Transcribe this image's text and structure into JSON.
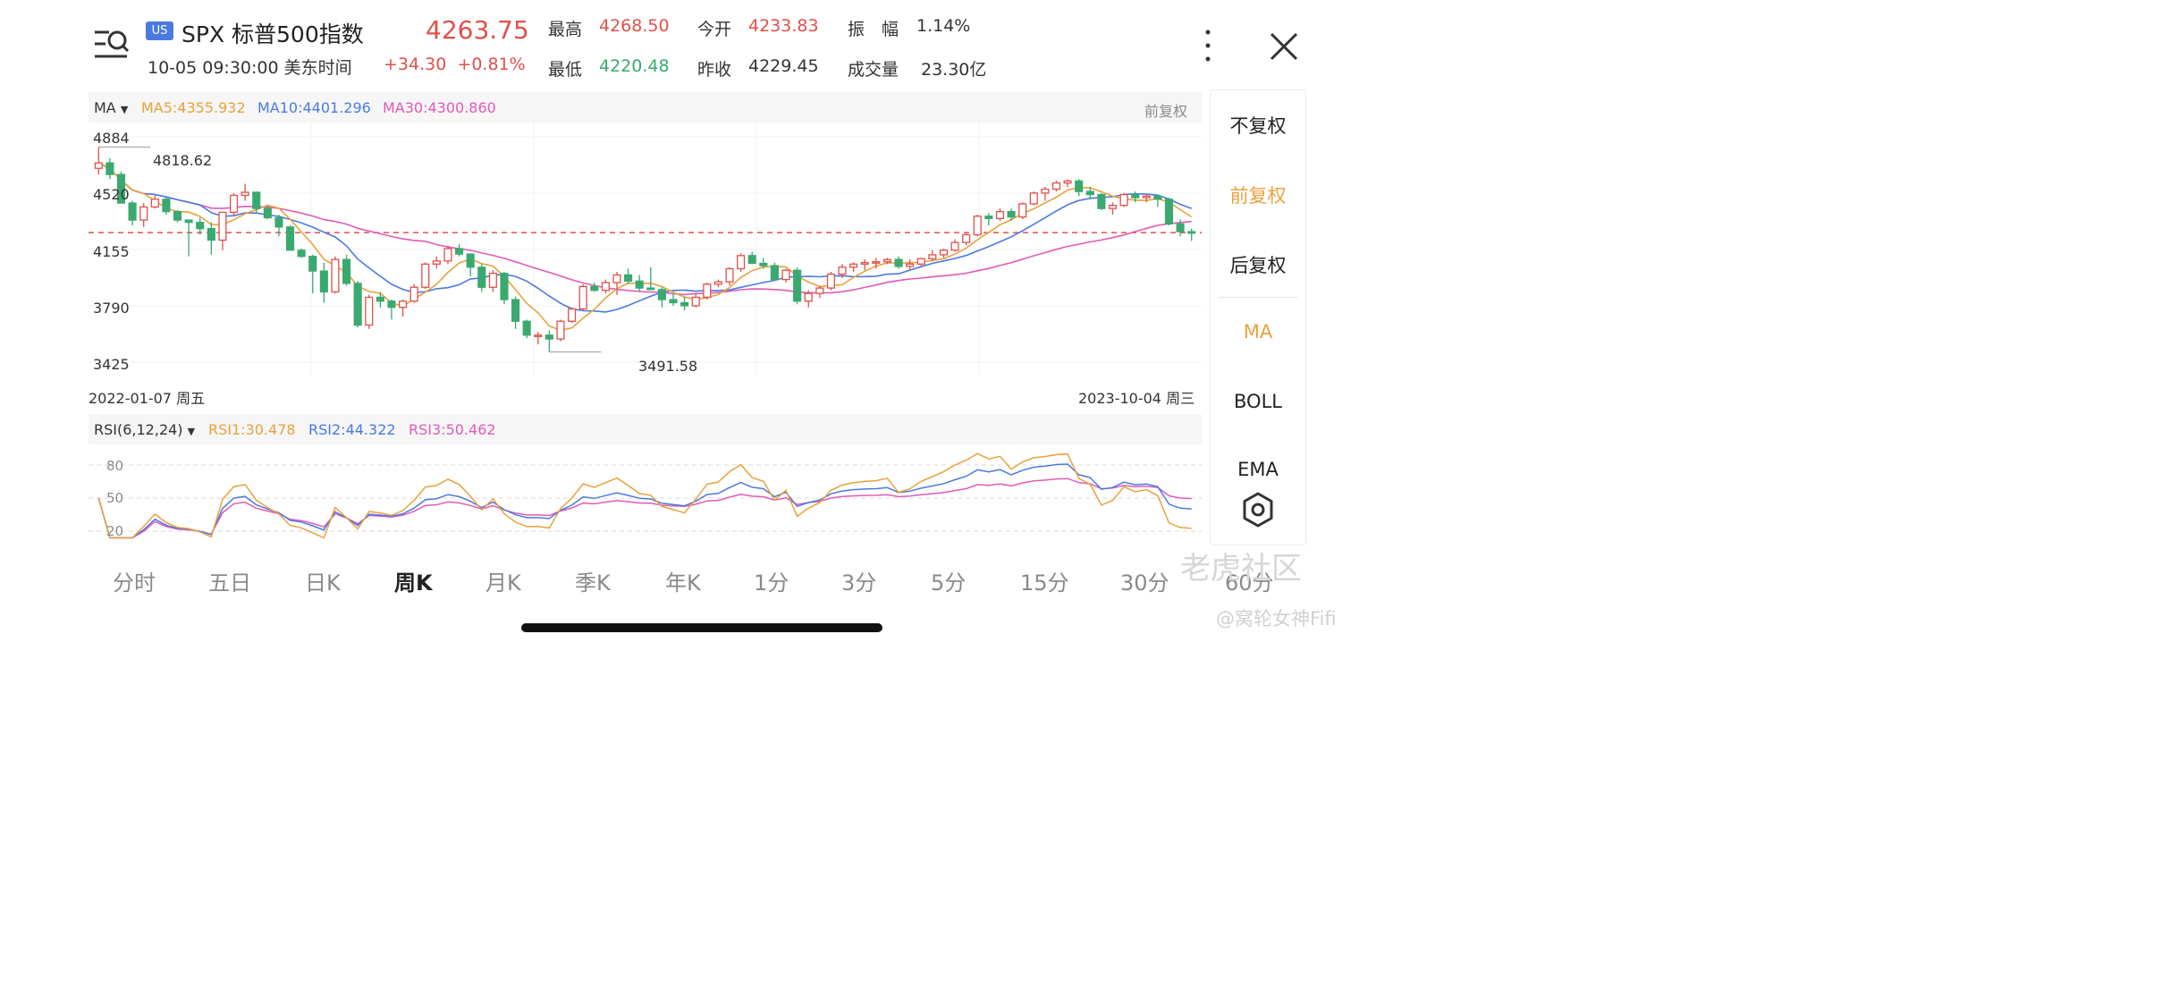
{
  "header": {
    "market_badge": "US",
    "title": "SPX 标普500指数",
    "price": "4263.75",
    "time": "10-05 09:30:00 美东时间",
    "change": "+34.30",
    "change_pct": "+0.81%",
    "stats": [
      {
        "label": "最高",
        "value": "4268.50",
        "color": "red"
      },
      {
        "label": "今开",
        "value": "4233.83",
        "color": "red"
      },
      {
        "label": "振　幅",
        "value": "1.14%",
        "color": "dark"
      },
      {
        "label": "最低",
        "value": "4220.48",
        "color": "green"
      },
      {
        "label": "昨收",
        "value": "4229.45",
        "color": "dark"
      },
      {
        "label": "成交量",
        "value": "23.30亿",
        "color": "dark"
      }
    ]
  },
  "main_chart": {
    "indicator_selector": "MA",
    "ma5": "MA5:4355.932",
    "ma10": "MA10:4401.296",
    "ma30": "MA30:4300.860",
    "adjust_mode": "前复权",
    "y_ticks": [
      "4884",
      "4520",
      "4155",
      "3790",
      "3425"
    ],
    "high_marker": "4818.62",
    "low_marker": "3491.58",
    "start_date": "2022-01-07 周五",
    "end_date": "2023-10-04 周三"
  },
  "rsi_chart": {
    "selector": "RSI(6,12,24)",
    "rsi1": "RSI1:30.478",
    "rsi2": "RSI2:44.322",
    "rsi3": "RSI3:50.462",
    "levels": [
      "80",
      "50",
      "20"
    ]
  },
  "side_panel": {
    "items": [
      "不复权",
      "前复权",
      "后复权",
      "MA",
      "BOLL",
      "EMA"
    ],
    "active_adjust": "前复权",
    "active_indicator": "MA"
  },
  "tabs": [
    "分时",
    "五日",
    "日K",
    "周K",
    "月K",
    "季K",
    "年K",
    "1分",
    "3分",
    "5分",
    "15分",
    "30分",
    "60分"
  ],
  "active_tab": "周K",
  "watermark": "老虎社区",
  "watermark_user": "@窝轮女神Fifi",
  "colors": {
    "up": "#e0504a",
    "down": "#3aa970",
    "ma5": "#e9a23b",
    "ma10": "#4a7ae0",
    "ma30": "#e05ab8"
  },
  "chart_data": {
    "type": "candlestick",
    "ylim": [
      3425,
      4884
    ],
    "current_price_line": 4263.75,
    "candles_ohlc": [
      [
        4680,
        4818,
        4640,
        4715
      ],
      [
        4715,
        4745,
        4610,
        4640
      ],
      [
        4640,
        4660,
        4460,
        4455
      ],
      [
        4455,
        4470,
        4310,
        4345
      ],
      [
        4345,
        4455,
        4300,
        4430
      ],
      [
        4430,
        4505,
        4420,
        4480
      ],
      [
        4480,
        4495,
        4380,
        4400
      ],
      [
        4400,
        4410,
        4330,
        4345
      ],
      [
        4345,
        4350,
        4110,
        4330
      ],
      [
        4330,
        4360,
        4250,
        4290
      ],
      [
        4290,
        4330,
        4120,
        4215
      ],
      [
        4215,
        4385,
        4150,
        4395
      ],
      [
        4395,
        4520,
        4370,
        4505
      ],
      [
        4505,
        4580,
        4470,
        4525
      ],
      [
        4525,
        4530,
        4390,
        4420
      ],
      [
        4420,
        4440,
        4350,
        4360
      ],
      [
        4360,
        4380,
        4240,
        4300
      ],
      [
        4300,
        4310,
        4150,
        4150
      ],
      [
        4150,
        4160,
        4100,
        4110
      ],
      [
        4110,
        4120,
        3870,
        4015
      ],
      [
        4015,
        4070,
        3810,
        3880
      ],
      [
        3880,
        4110,
        3870,
        4090
      ],
      [
        4090,
        4120,
        3920,
        3935
      ],
      [
        3935,
        3950,
        3650,
        3665
      ],
      [
        3665,
        3860,
        3640,
        3845
      ],
      [
        3845,
        3880,
        3780,
        3820
      ],
      [
        3820,
        3830,
        3700,
        3780
      ],
      [
        3780,
        3830,
        3720,
        3820
      ],
      [
        3820,
        3930,
        3810,
        3910
      ],
      [
        3910,
        4070,
        3900,
        4060
      ],
      [
        4060,
        4110,
        4030,
        4080
      ],
      [
        4080,
        4180,
        4060,
        4160
      ],
      [
        4160,
        4190,
        4110,
        4125
      ],
      [
        4125,
        4130,
        3980,
        4040
      ],
      [
        4040,
        4060,
        3880,
        3910
      ],
      [
        3910,
        4020,
        3880,
        4000
      ],
      [
        4000,
        4010,
        3800,
        3830
      ],
      [
        3830,
        3850,
        3640,
        3690
      ],
      [
        3690,
        3700,
        3580,
        3600
      ],
      [
        3600,
        3620,
        3540,
        3600
      ],
      [
        3600,
        3630,
        3491,
        3575
      ],
      [
        3575,
        3700,
        3560,
        3690
      ],
      [
        3690,
        3780,
        3680,
        3770
      ],
      [
        3770,
        3930,
        3760,
        3915
      ],
      [
        3915,
        3940,
        3880,
        3890
      ],
      [
        3890,
        3960,
        3870,
        3940
      ],
      [
        3940,
        4010,
        3860,
        3990
      ],
      [
        3990,
        4030,
        3930,
        3950
      ],
      [
        3950,
        3990,
        3880,
        3905
      ],
      [
        3905,
        4040,
        3890,
        3895
      ],
      [
        3895,
        3910,
        3780,
        3830
      ],
      [
        3830,
        3870,
        3790,
        3810
      ],
      [
        3810,
        3850,
        3760,
        3790
      ],
      [
        3790,
        3870,
        3780,
        3845
      ],
      [
        3845,
        3940,
        3830,
        3930
      ],
      [
        3930,
        3960,
        3910,
        3945
      ],
      [
        3945,
        4040,
        3920,
        4030
      ],
      [
        4030,
        4130,
        4010,
        4115
      ],
      [
        4115,
        4140,
        4060,
        4065
      ],
      [
        4065,
        4100,
        4030,
        4050
      ],
      [
        4050,
        4070,
        3950,
        3960
      ],
      [
        3960,
        4030,
        3940,
        4020
      ],
      [
        4020,
        4040,
        3800,
        3820
      ],
      [
        3820,
        3890,
        3780,
        3870
      ],
      [
        3870,
        3920,
        3840,
        3905
      ],
      [
        3905,
        4010,
        3890,
        3995
      ],
      [
        3995,
        4060,
        3970,
        4040
      ],
      [
        4040,
        4070,
        4010,
        4060
      ],
      [
        4060,
        4090,
        4020,
        4070
      ],
      [
        4070,
        4100,
        4030,
        4075
      ],
      [
        4075,
        4100,
        4060,
        4090
      ],
      [
        4090,
        4110,
        4030,
        4045
      ],
      [
        4045,
        4090,
        4020,
        4060
      ],
      [
        4060,
        4100,
        4040,
        4095
      ],
      [
        4095,
        4150,
        4080,
        4120
      ],
      [
        4120,
        4160,
        4100,
        4150
      ],
      [
        4150,
        4220,
        4140,
        4200
      ],
      [
        4200,
        4260,
        4180,
        4250
      ],
      [
        4250,
        4380,
        4240,
        4370
      ],
      [
        4370,
        4390,
        4310,
        4355
      ],
      [
        4355,
        4420,
        4340,
        4400
      ],
      [
        4400,
        4420,
        4340,
        4365
      ],
      [
        4365,
        4460,
        4350,
        4450
      ],
      [
        4450,
        4530,
        4440,
        4520
      ],
      [
        4520,
        4560,
        4470,
        4545
      ],
      [
        4545,
        4600,
        4530,
        4585
      ],
      [
        4585,
        4610,
        4560,
        4598
      ],
      [
        4598,
        4610,
        4500,
        4530
      ],
      [
        4530,
        4560,
        4480,
        4510
      ],
      [
        4510,
        4520,
        4410,
        4420
      ],
      [
        4420,
        4460,
        4380,
        4440
      ],
      [
        4440,
        4520,
        4430,
        4510
      ],
      [
        4510,
        4530,
        4460,
        4490
      ],
      [
        4490,
        4510,
        4460,
        4500
      ],
      [
        4500,
        4510,
        4430,
        4480
      ],
      [
        4480,
        4490,
        4310,
        4320
      ],
      [
        4320,
        4350,
        4240,
        4270
      ],
      [
        4270,
        4290,
        4210,
        4260
      ]
    ]
  }
}
